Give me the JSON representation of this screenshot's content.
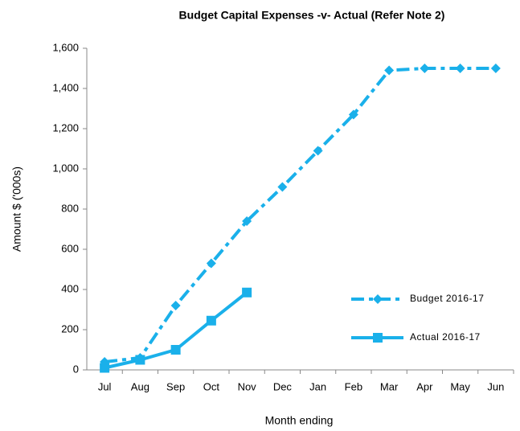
{
  "chart_data": {
    "type": "line",
    "title": "Budget Capital Expenses -v- Actual (Refer Note 2)",
    "xlabel": "Month ending",
    "ylabel": "Amount $ ('000s)",
    "categories": [
      "Jul",
      "Aug",
      "Sep",
      "Oct",
      "Nov",
      "Dec",
      "Jan",
      "Feb",
      "Mar",
      "Apr",
      "May",
      "Jun"
    ],
    "series": [
      {
        "name": "Budget 2016-17",
        "color": "#1ab0ea",
        "line_style": "dashed",
        "marker": "diamond",
        "values": [
          40,
          60,
          320,
          530,
          740,
          910,
          1090,
          1270,
          1490,
          1500,
          1500,
          1500
        ]
      },
      {
        "name": "Actual 2016-17",
        "color": "#1ab0ea",
        "line_style": "solid",
        "marker": "square",
        "values": [
          10,
          50,
          100,
          245,
          385,
          null,
          null,
          null,
          null,
          null,
          null,
          null
        ]
      }
    ],
    "ylim": [
      0,
      1600
    ],
    "yticks": [
      0,
      200,
      400,
      600,
      800,
      {
        "value": 1000,
        "label": "1,000"
      },
      {
        "value": 1200,
        "label": "1,200"
      },
      {
        "value": 1400,
        "label": "1,400"
      },
      {
        "value": 1600,
        "label": "1,600"
      }
    ],
    "grid": false,
    "legend": "lower right"
  }
}
